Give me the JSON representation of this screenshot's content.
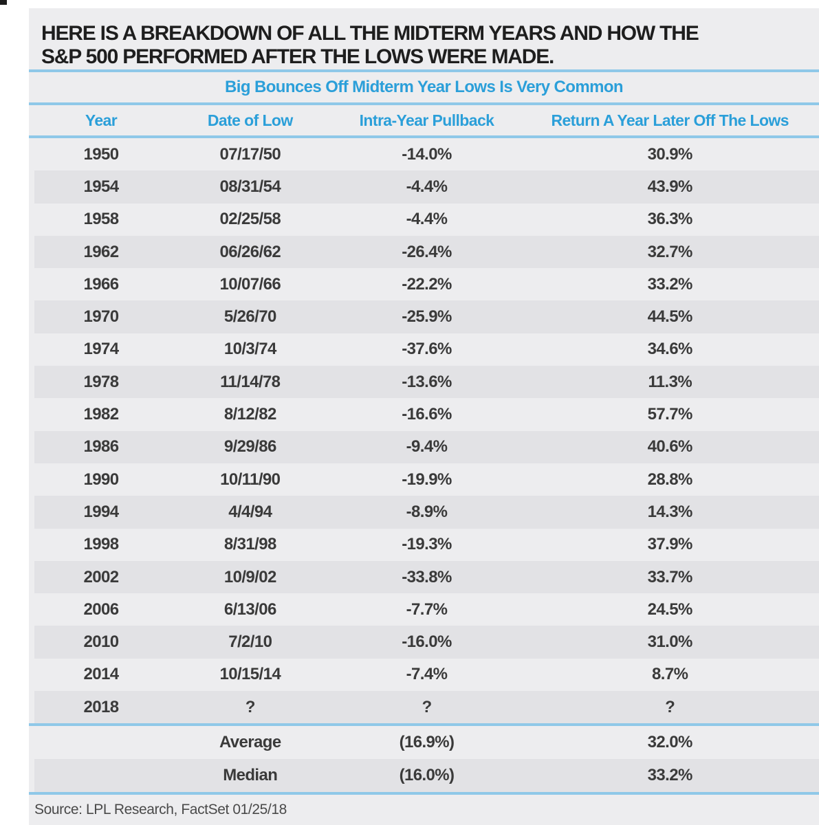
{
  "heading": "HERE IS A BREAKDOWN OF ALL THE MIDTERM YEARS AND HOW THE S&P 500 PERFORMED AFTER THE LOWS WERE MADE.",
  "source_line": "Source: LPL Research, FactSet  01/25/18",
  "colors": {
    "accent_cyan_text": "#2b9fd9",
    "accent_cyan_rule": "#8fc8e8",
    "panel_bg": "#ededef",
    "stripe_bg": "#e2e2e5",
    "data_text": "#3a3a3a",
    "heading_text": "#1e1e1e"
  },
  "chart_data": {
    "type": "table",
    "title": "Big Bounces Off Midterm Year Lows Is Very Common",
    "columns": [
      "Year",
      "Date of Low",
      "Intra-Year Pullback",
      "Return A Year Later Off The Lows"
    ],
    "rows": [
      [
        "1950",
        "07/17/50",
        "-14.0%",
        "30.9%"
      ],
      [
        "1954",
        "08/31/54",
        "-4.4%",
        "43.9%"
      ],
      [
        "1958",
        "02/25/58",
        "-4.4%",
        "36.3%"
      ],
      [
        "1962",
        "06/26/62",
        "-26.4%",
        "32.7%"
      ],
      [
        "1966",
        "10/07/66",
        "-22.2%",
        "33.2%"
      ],
      [
        "1970",
        "5/26/70",
        "-25.9%",
        "44.5%"
      ],
      [
        "1974",
        "10/3/74",
        "-37.6%",
        "34.6%"
      ],
      [
        "1978",
        "11/14/78",
        "-13.6%",
        "11.3%"
      ],
      [
        "1982",
        "8/12/82",
        "-16.6%",
        "57.7%"
      ],
      [
        "1986",
        "9/29/86",
        "-9.4%",
        "40.6%"
      ],
      [
        "1990",
        "10/11/90",
        "-19.9%",
        "28.8%"
      ],
      [
        "1994",
        "4/4/94",
        "-8.9%",
        "14.3%"
      ],
      [
        "1998",
        "8/31/98",
        "-19.3%",
        "37.9%"
      ],
      [
        "2002",
        "10/9/02",
        "-33.8%",
        "33.7%"
      ],
      [
        "2006",
        "6/13/06",
        "-7.7%",
        "24.5%"
      ],
      [
        "2010",
        "7/2/10",
        "-16.0%",
        "31.0%"
      ],
      [
        "2014",
        "10/15/14",
        "-7.4%",
        "8.7%"
      ],
      [
        "2018",
        "?",
        "?",
        "?"
      ]
    ],
    "summary_rows": [
      [
        "",
        "Average",
        "(16.9%)",
        "32.0%"
      ],
      [
        "",
        "Median",
        "(16.0%)",
        "33.2%"
      ]
    ]
  }
}
